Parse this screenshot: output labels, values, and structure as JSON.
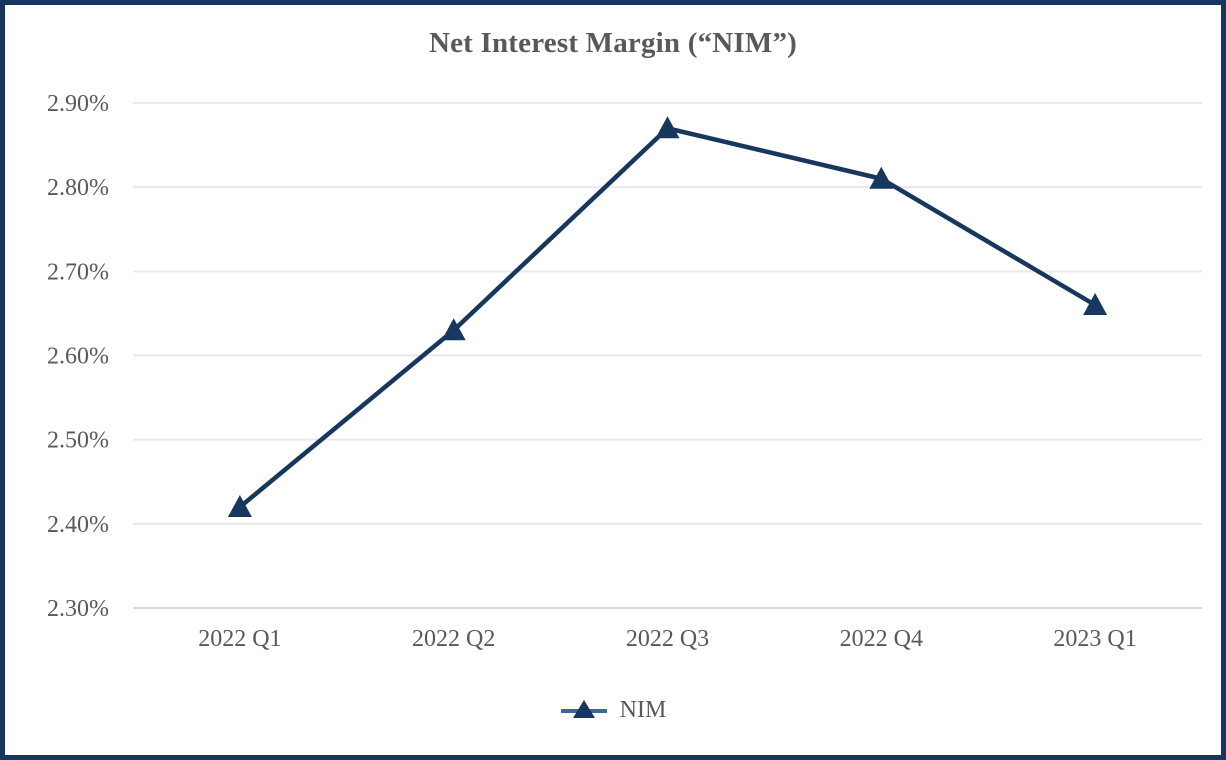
{
  "chart_data": {
    "type": "line",
    "title": "Net Interest Margin (“NIM”)",
    "categories": [
      "2022 Q1",
      "2022 Q2",
      "2022 Q3",
      "2022 Q4",
      "2023 Q1"
    ],
    "series": [
      {
        "name": "NIM",
        "values": [
          2.42,
          2.63,
          2.87,
          2.81,
          2.66
        ]
      }
    ],
    "value_unit": "percent",
    "ylim": [
      2.3,
      2.9
    ],
    "y_tick_step": 0.1,
    "y_tick_labels": [
      "2.90%",
      "2.80%",
      "2.70%",
      "2.60%",
      "2.50%",
      "2.40%",
      "2.30%"
    ],
    "grid": true,
    "marker_shape": "triangle-up",
    "legend_position": "bottom-center",
    "legend_entries": [
      "NIM"
    ],
    "colors": {
      "series": "#17375E",
      "legend_line": "#3E6690",
      "border": "#17375E",
      "title": "#595959",
      "axis_labels": "#595959",
      "gridline": "#E9E9E9",
      "axis_line": "#D8D8D8",
      "background": "#FFFFFF"
    }
  }
}
